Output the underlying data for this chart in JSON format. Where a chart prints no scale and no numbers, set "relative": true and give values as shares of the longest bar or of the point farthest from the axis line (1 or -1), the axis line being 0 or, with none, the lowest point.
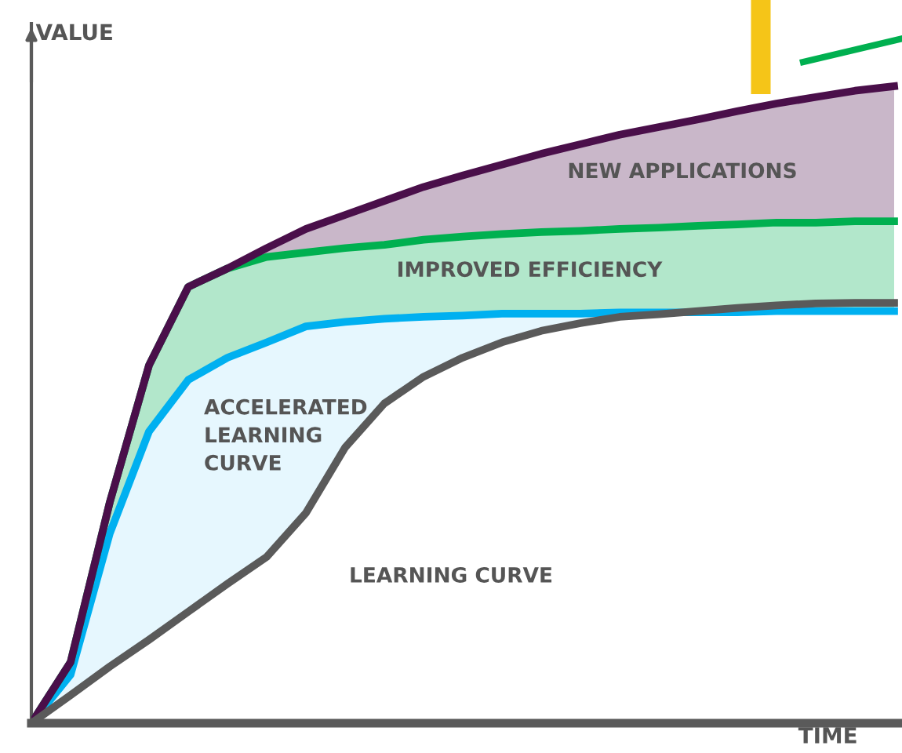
{
  "chart_data": {
    "type": "line",
    "relative": true,
    "xlabel": "TIME",
    "ylabel": "VALUE",
    "annotations": [
      "LEARNING CURVE",
      "ACCELERATED\nLEARNING\nCURVE",
      "IMPROVED EFFICIENCY",
      "NEW APPLICATIONS"
    ],
    "categories": [
      null,
      null,
      null,
      null,
      null,
      null,
      null,
      null,
      null,
      null,
      null,
      null,
      null,
      null,
      null,
      null,
      null,
      null,
      null,
      null,
      null,
      null,
      null
    ],
    "series": [
      {
        "color": "#5a5a5a",
        "values": [
          0,
          0.044,
          0.089,
          0.131,
          0.175,
          0.219,
          0.261,
          0.33,
          0.433,
          0.502,
          0.544,
          0.574,
          0.598,
          0.616,
          0.628,
          0.638,
          0.642,
          0.647,
          0.652,
          0.656,
          0.659,
          0.66,
          0.66
        ]
      },
      {
        "color": "#00b0f0",
        "values": [
          0,
          0.076,
          0.298,
          0.458,
          0.539,
          0.574,
          0.598,
          0.623,
          0.63,
          0.635,
          0.638,
          0.64,
          0.643,
          0.643,
          0.643,
          0.645,
          0.645,
          0.645,
          0.645,
          0.647,
          0.647,
          0.647,
          0.647
        ]
      },
      {
        "color": "#00b050",
        "values": [
          0,
          0.096,
          0.347,
          0.562,
          0.685,
          0.714,
          0.732,
          0.739,
          0.746,
          0.751,
          0.759,
          0.764,
          0.768,
          0.771,
          0.773,
          0.776,
          0.778,
          0.781,
          0.783,
          0.786,
          0.786,
          0.788,
          0.788
        ]
      },
      {
        "color": "#4a0f4a",
        "values": [
          0,
          0.096,
          0.347,
          0.562,
          0.685,
          0.714,
          0.746,
          0.776,
          0.798,
          0.82,
          0.842,
          0.86,
          0.877,
          0.894,
          0.909,
          0.924,
          0.936,
          0.948,
          0.961,
          0.973,
          0.983,
          0.993,
          1
        ]
      }
    ]
  }
}
